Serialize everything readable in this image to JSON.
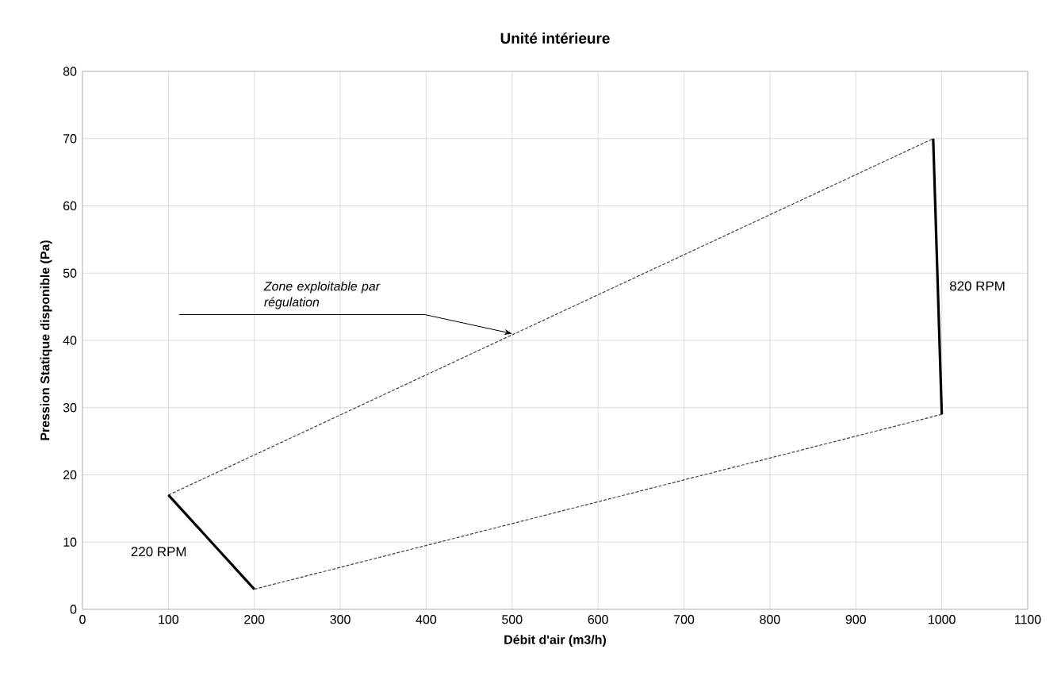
{
  "chart_data": {
    "type": "line",
    "title": "Unité intérieure",
    "xlabel": "Débit d'air (m3/h)",
    "ylabel": "Pression Statique disponible (Pa)",
    "xlim": [
      0,
      1100
    ],
    "xticks": [
      0,
      100,
      200,
      300,
      400,
      500,
      600,
      700,
      800,
      900,
      1000,
      1100
    ],
    "ylim": [
      0,
      80
    ],
    "yticks": [
      0,
      10,
      20,
      30,
      40,
      50,
      60,
      70,
      80
    ],
    "grid": true,
    "marker": "none",
    "series": [
      {
        "x": [
          100,
          990
        ],
        "values": [
          17,
          70
        ],
        "color": "#404040",
        "line_style": "dashed"
      },
      {
        "x": [
          200,
          1000
        ],
        "values": [
          3,
          29
        ],
        "color": "#404040",
        "line_style": "dashed"
      },
      {
        "name": "220 RPM",
        "x": [
          100,
          200
        ],
        "values": [
          17,
          3
        ],
        "color": "#000000",
        "line_style": "solid"
      },
      {
        "name": "820 RPM",
        "x": [
          990,
          1000
        ],
        "values": [
          70,
          29
        ],
        "color": "#000000",
        "line_style": "solid"
      }
    ],
    "annotations": [
      {
        "text": "Zone exploitable par régulation",
        "x": 500,
        "y": 41
      }
    ]
  }
}
